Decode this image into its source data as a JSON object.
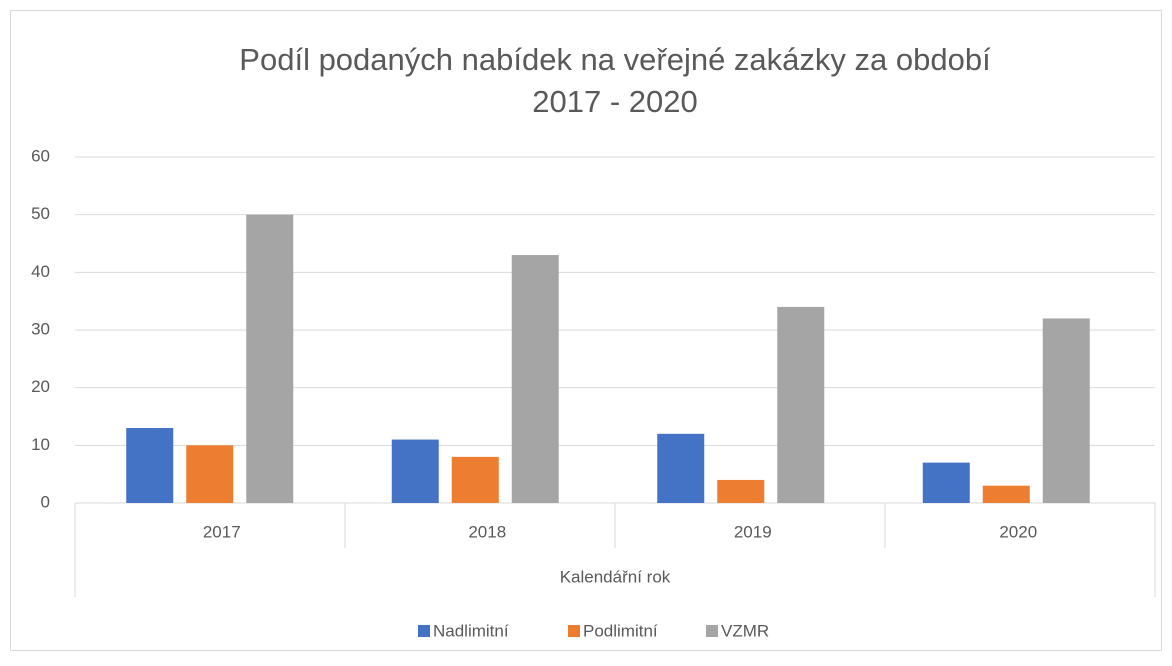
{
  "chart_data": {
    "type": "bar",
    "title": [
      "Podíl podaných nabídek na veřejné zakázky za období",
      "2017 - 2020"
    ],
    "x_label": "Kalendářní rok",
    "categories": [
      "2017",
      "2018",
      "2019",
      "2020"
    ],
    "series": [
      {
        "name": "Nadlimitní",
        "color": "#4472c4",
        "values": [
          13,
          11,
          12,
          7
        ]
      },
      {
        "name": "Podlimitní",
        "color": "#ed7d31",
        "values": [
          10,
          8,
          4,
          3
        ]
      },
      {
        "name": "VZMR",
        "color": "#a5a5a5",
        "values": [
          50,
          43,
          34,
          32
        ]
      }
    ],
    "ylim": [
      0,
      60
    ],
    "yticks": [
      0,
      10,
      20,
      30,
      40,
      50,
      60
    ],
    "grid": true,
    "legend": "bottom"
  }
}
